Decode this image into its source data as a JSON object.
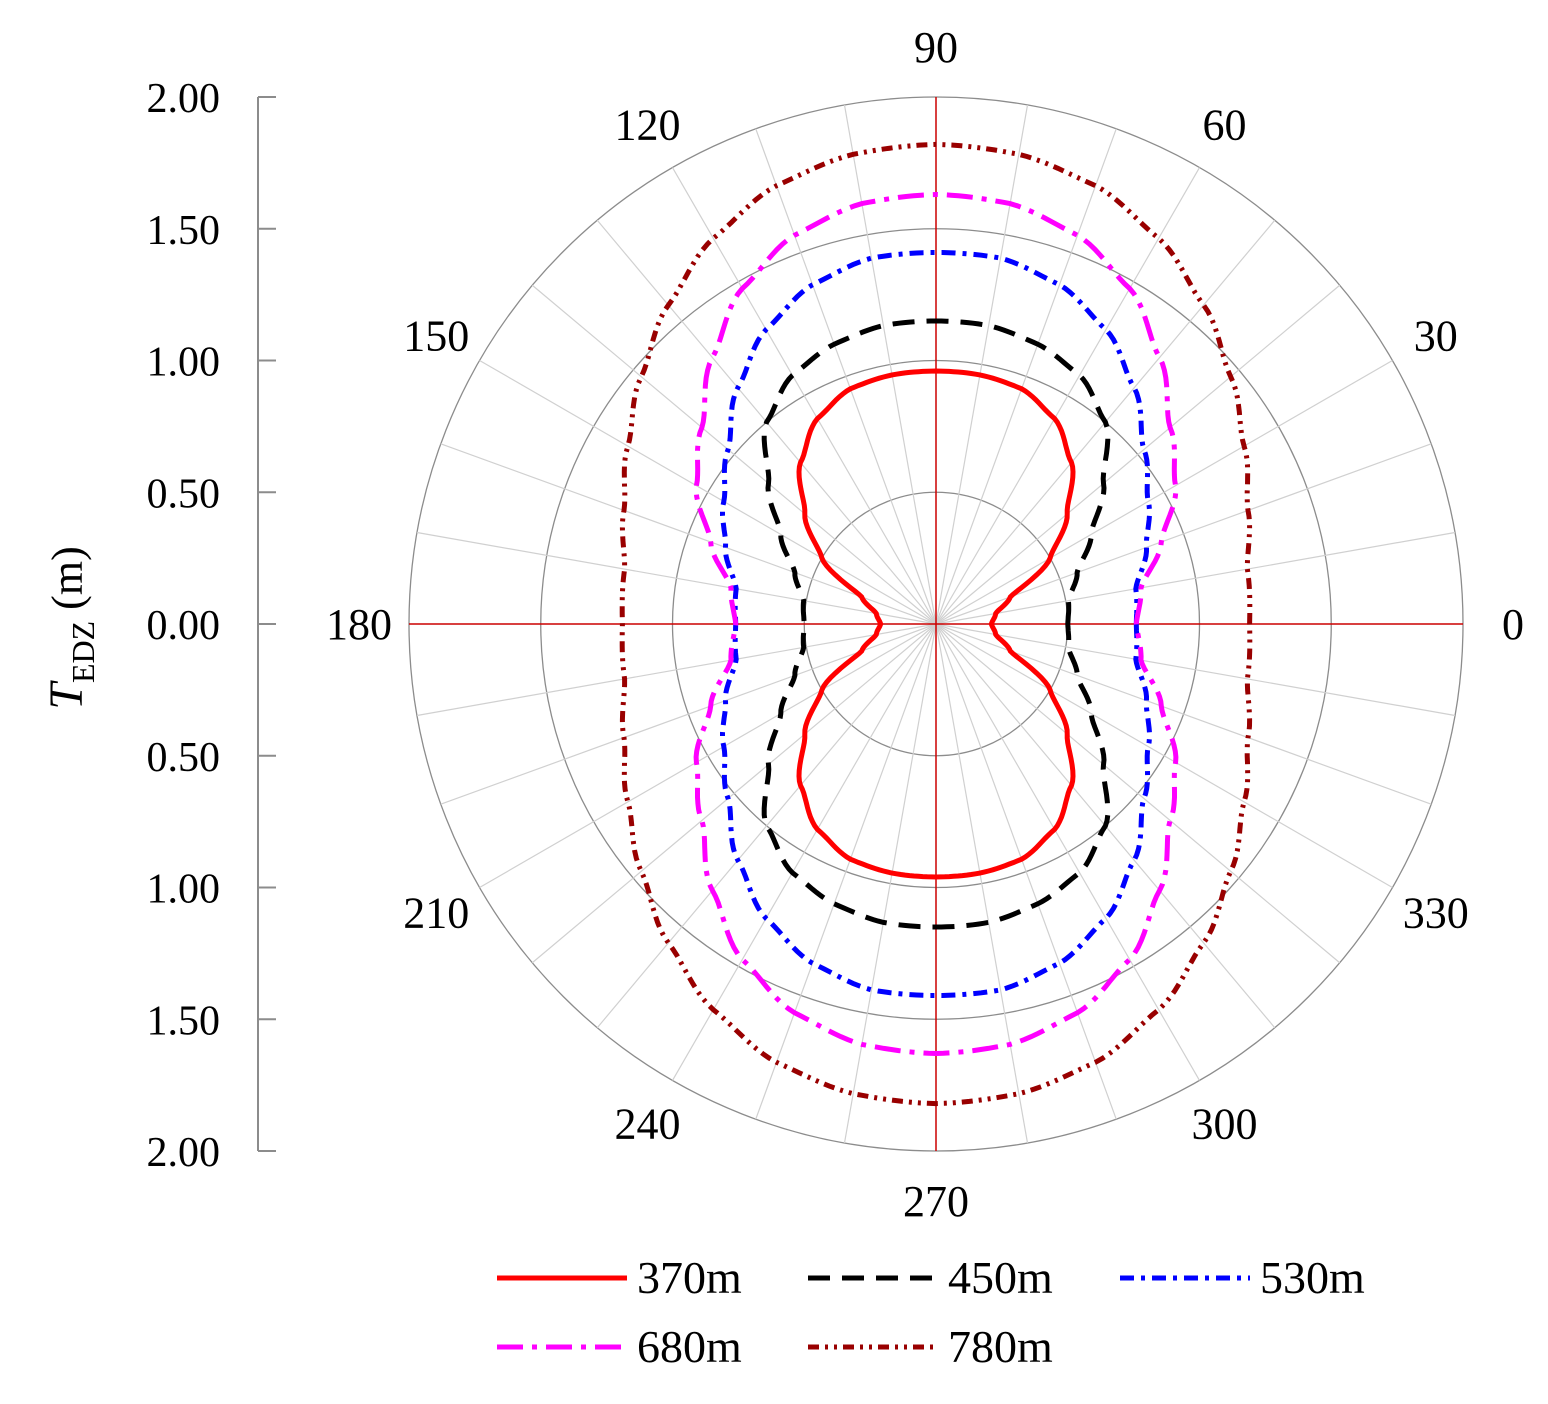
{
  "chart_data": {
    "type": "polar-line",
    "title": "",
    "radial_axis": {
      "label_main": "T",
      "label_sub": "EDZ",
      "label_unit": " (m)",
      "range": [
        0,
        2
      ],
      "step": 0.5,
      "tick_labels_upper": [
        "2.00",
        "1.50",
        "1.00",
        "0.50",
        "0.00"
      ],
      "tick_labels_lower": [
        "0.50",
        "1.00",
        "1.50",
        "2.00"
      ]
    },
    "angular_axis": {
      "unit": "degrees",
      "major_labels": [
        {
          "angle": 0,
          "label": "0"
        },
        {
          "angle": 30,
          "label": "30"
        },
        {
          "angle": 60,
          "label": "60"
        },
        {
          "angle": 90,
          "label": "90"
        },
        {
          "angle": 120,
          "label": "120"
        },
        {
          "angle": 150,
          "label": "150"
        },
        {
          "angle": 180,
          "label": "180"
        },
        {
          "angle": 210,
          "label": "210"
        },
        {
          "angle": 240,
          "label": "240"
        },
        {
          "angle": 270,
          "label": "270"
        },
        {
          "angle": 300,
          "label": "300"
        },
        {
          "angle": 330,
          "label": "330"
        }
      ],
      "spoke_step_deg": 10
    },
    "series_angles_deg": [
      0,
      10,
      20,
      30,
      40,
      50,
      60,
      70,
      80,
      90
    ],
    "symmetry": "values repeat symmetrically in all four quadrants",
    "series": [
      {
        "name": "370m",
        "color": "#ff0000",
        "dash": "solid",
        "values": [
          0.21,
          0.23,
          0.3,
          0.5,
          0.65,
          0.8,
          0.9,
          0.95,
          0.96,
          0.96
        ]
      },
      {
        "name": "450m",
        "color": "#000000",
        "dash": "dash",
        "values": [
          0.5,
          0.51,
          0.57,
          0.68,
          0.83,
          1.0,
          1.09,
          1.13,
          1.15,
          1.15
        ]
      },
      {
        "name": "530m",
        "color": "#0000ff",
        "dash": "dash-dot",
        "values": [
          0.76,
          0.77,
          0.85,
          0.93,
          1.03,
          1.17,
          1.29,
          1.37,
          1.41,
          1.41
        ]
      },
      {
        "name": "680m",
        "color": "#ff00ff",
        "dash": "long-dash-dot",
        "values": [
          0.76,
          0.79,
          0.91,
          1.05,
          1.16,
          1.32,
          1.47,
          1.57,
          1.62,
          1.63
        ]
      },
      {
        "name": "780m",
        "color": "#990000",
        "dash": "dash-dot-dot",
        "values": [
          1.19,
          1.2,
          1.26,
          1.35,
          1.46,
          1.58,
          1.69,
          1.77,
          1.81,
          1.82
        ]
      }
    ],
    "legend": {
      "position": "bottom",
      "columns": 3
    }
  }
}
